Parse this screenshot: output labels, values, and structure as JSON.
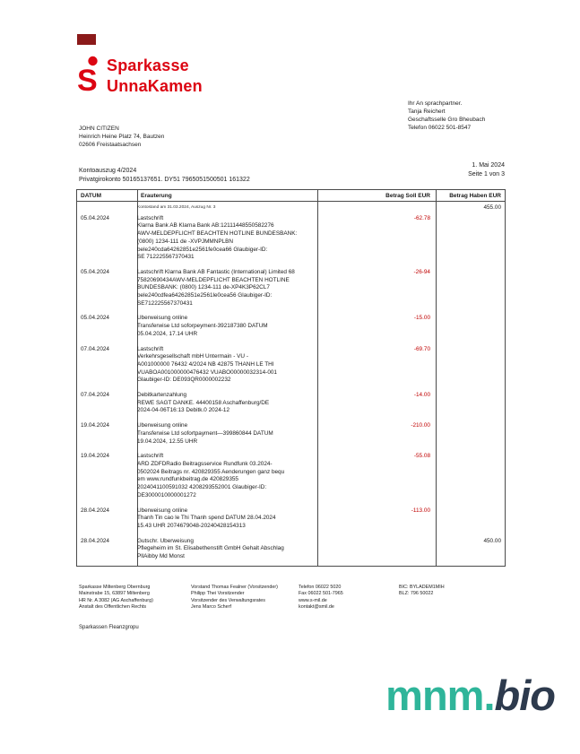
{
  "brand": {
    "line1": "Sparkasse",
    "line2": "UnnaKamen",
    "color": "#dc0512",
    "corner_mark_color": "#8b1a1a"
  },
  "recipient": {
    "lines": [
      "JOHN CITIZEN",
      "Heinrich Heine Platz 74, Bautzen",
      "02606 Freistaatsachsen"
    ]
  },
  "contact": {
    "lines": [
      "Ihr An sprachpartner.",
      "Tanja Reichert",
      "Geschaftsselle Gro Bheubach",
      "Telefon 06022 501-8547"
    ]
  },
  "statement": {
    "title": "Kontoauszug 4/2024",
    "account_line": "Privatgirokonto 50165137651. DY51 7965051500501 161322",
    "date": "1. Mai 2024",
    "page": "Seite 1 von 3"
  },
  "table": {
    "headers": {
      "date": "DATUM",
      "description": "Erauterung",
      "debit": "Betrag Soll EUR",
      "credit": "Betrag Haben EUR"
    },
    "debit_color": "#c00000",
    "opening": {
      "text": "Kontostand am 31.03.2024, Auszug Nr. 3",
      "credit": "455.00"
    },
    "rows": [
      {
        "date": "05.04.2024",
        "lines": [
          "Lastschrift",
          "Klarna Bank AB Klarna Bank AB:12111448550582276",
          "AWV-MELDEPFLICHT BEACHTEN HOTLINE BUNDESBANK:",
          "(0800) 1234-111 de -XVPJMMNPLBN",
          "bele240cda64262851e2561fe0cea66 Glaubiger-ID:",
          "SE 712225567370431"
        ],
        "debit": "-62.78",
        "credit": ""
      },
      {
        "date": "05.04.2024",
        "lines": [
          "Lastschrift Klarna Bank AB Fantastic (International) Limited 68",
          "75820690434AWV-MELDEPFLICHT BEACHTEN HOTLINE",
          "BUNDESBANK: (0800) 1234-111 de-XP4K3P62CL7",
          "bele240cdfea64262851e2561le0cea56 Glaubiger-ID:",
          "SE712225567370431"
        ],
        "debit": "-26-94",
        "credit": ""
      },
      {
        "date": "05.04.2024",
        "lines": [
          "Uberweisung online",
          "Transferwise Ltd soforpeyment-392187380 DATUM",
          "05.04.2024, 17.14 UHR"
        ],
        "debit": "-15.00",
        "credit": ""
      },
      {
        "date": "07.04.2024",
        "lines": [
          "Lastschrift",
          "Verkehrsgesellschaft mbH Untermain  - VU -",
          "A001000000 76432 4/2024 NB 42875 THANH LE THI",
          "VUABOA001000000476432 VUABO00000032314-001",
          "Glaubiger-ID: DE093QR0000002232"
        ],
        "debit": "-69.70",
        "credit": ""
      },
      {
        "date": "07.04.2024",
        "lines": [
          "Debitkartenzahlung",
          "REWE SAGT DANKE. 44400158 Aschaffenburg/DE",
          "2024-04-06T16:13 Debitk.0 2024-12"
        ],
        "debit": "-14.00",
        "credit": ""
      },
      {
        "date": "19.04.2024",
        "lines": [
          "Uberweisung online",
          "Transferwise Ltd sofortpayment—399860844 DATUM",
          "19.04.2024, 12.55 UHR"
        ],
        "debit": "-210.00",
        "credit": ""
      },
      {
        "date": "19.04.2024",
        "lines": [
          "Lastschrift",
          "ARD ZDFDRadio Beitragsservice Rundfunk 03.2024-",
          "0502024 Beitrags nr. 420829355 Aenderungen ganz bequ",
          "em www.rundfunkbeitrag.de 420829355",
          "2024041100591032 4208293552001 Glaubiger-ID:",
          "DE3000010000001272"
        ],
        "debit": "-55.08",
        "credit": ""
      },
      {
        "date": "28.04.2024",
        "lines": [
          "Uberweisung online",
          "Thanh Tin cao le Thi Thanh spend DATUM 28.04.2024",
          "15.43 UHR 2074679048-20240428154313"
        ],
        "debit": "-113.00",
        "credit": ""
      },
      {
        "date": "28.04.2024",
        "lines": [
          "Gutschr. Uberweisung",
          "Pflegeheim im St. Elisabethenstift GmbH Gehalt Abschlag",
          "PllAibby Md Monst"
        ],
        "debit": "",
        "credit": "450.00"
      }
    ]
  },
  "footer": {
    "col1": [
      "Sparkasse Miltenberg Obernburg",
      "Mainstrabe 15, 63897 Miltenberg",
      "HR Nr. A 3082 (AG Aschaffenburg)",
      "Anstalt des Offentlichen Rechts"
    ],
    "col2": [
      "Vorstand Thomas Fealner (Vorsitzender)",
      "Philipp Thei Vorsitzender",
      "Vorsitzender des Verwaltungsrates",
      "Jens Marco Scherf"
    ],
    "col3": [
      "Telefon 06022 5020",
      "Fax 06022 501-7965",
      "www.s-mil.de",
      "kontakt@smil.de"
    ],
    "col4": [
      "BIC: BYLADEM1MIH",
      "BLZ: 796 50022"
    ],
    "brand_line": "Sparkassen Fleanzgropu"
  },
  "watermark": {
    "part1": "mnm.",
    "part2": "bio",
    "color1": "#2fb59a",
    "color2": "#2d3a4d"
  }
}
